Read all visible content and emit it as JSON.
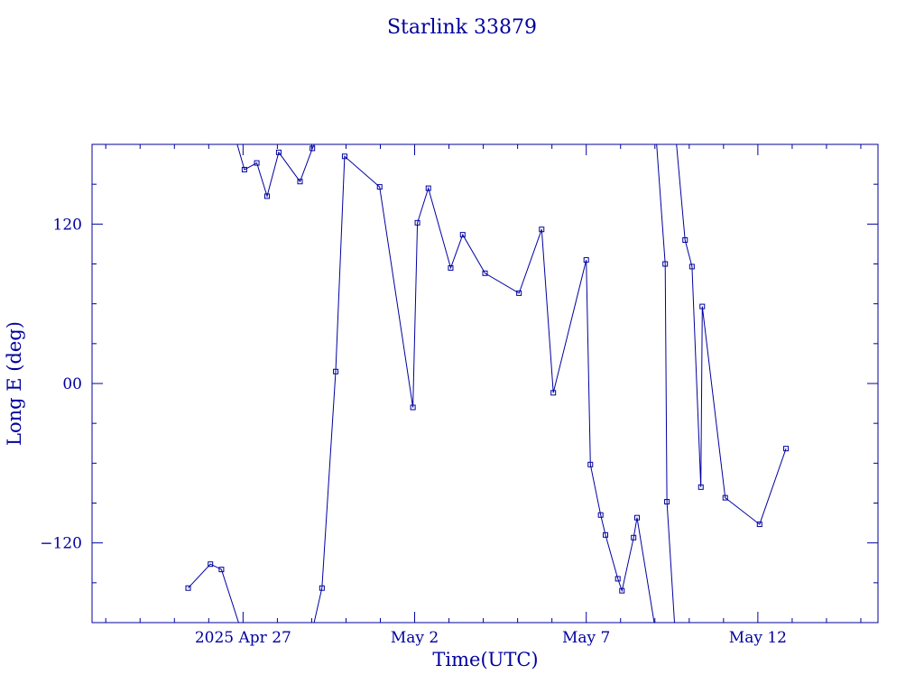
{
  "chart_data": {
    "type": "line",
    "title": "Starlink 33879",
    "xlabel": "Time(UTC)",
    "ylabel": "Long E (deg)",
    "x_unit": "days",
    "x_ticks": [
      {
        "value": 0,
        "label": "2025 Apr 27"
      },
      {
        "value": 5,
        "label": "May  2"
      },
      {
        "value": 10,
        "label": "May  7"
      },
      {
        "value": 15,
        "label": "May 12"
      }
    ],
    "y_ticks": [
      {
        "value": 120,
        "label": "120"
      },
      {
        "value": 0,
        "label": "00"
      },
      {
        "value": -120,
        "label": "−120"
      }
    ],
    "xlim": [
      -4.4,
      18.5
    ],
    "ylim": [
      -180,
      180
    ],
    "grid": false,
    "color": "#0000a0",
    "series": [
      {
        "values": [
          [
            -1.6,
            -154
          ],
          [
            -0.95,
            -136
          ],
          [
            -0.63,
            -140
          ],
          [
            -0.13,
            -180
          ],
          [
            -0.17,
            180
          ],
          [
            0.04,
            161
          ],
          [
            0.4,
            166
          ],
          [
            0.7,
            141
          ],
          [
            1.04,
            174
          ],
          [
            1.66,
            152
          ],
          [
            2.02,
            177
          ],
          [
            2.08,
            180
          ],
          [
            2.07,
            -180
          ],
          [
            2.3,
            -154
          ],
          [
            2.7,
            9
          ],
          [
            2.96,
            171
          ],
          [
            3.98,
            148
          ],
          [
            4.95,
            -18
          ],
          [
            5.08,
            121
          ],
          [
            5.4,
            147
          ],
          [
            6.05,
            87
          ],
          [
            6.4,
            112
          ],
          [
            7.05,
            83
          ],
          [
            8.04,
            68
          ],
          [
            8.7,
            116
          ],
          [
            9.04,
            -7
          ],
          [
            10.0,
            93
          ],
          [
            10.12,
            -61
          ],
          [
            10.42,
            -99
          ],
          [
            10.56,
            -114
          ],
          [
            10.92,
            -147
          ],
          [
            11.04,
            -156
          ],
          [
            11.38,
            -116
          ],
          [
            11.48,
            -101
          ],
          [
            11.98,
            -180
          ],
          [
            12.05,
            180
          ],
          [
            12.3,
            90
          ],
          [
            12.35,
            -89
          ],
          [
            12.57,
            -180
          ],
          [
            12.63,
            180
          ],
          [
            12.88,
            108
          ],
          [
            13.08,
            88
          ],
          [
            13.34,
            -78
          ],
          [
            13.38,
            58
          ],
          [
            14.05,
            -86
          ],
          [
            15.05,
            -106
          ],
          [
            15.82,
            -49
          ]
        ]
      }
    ]
  }
}
